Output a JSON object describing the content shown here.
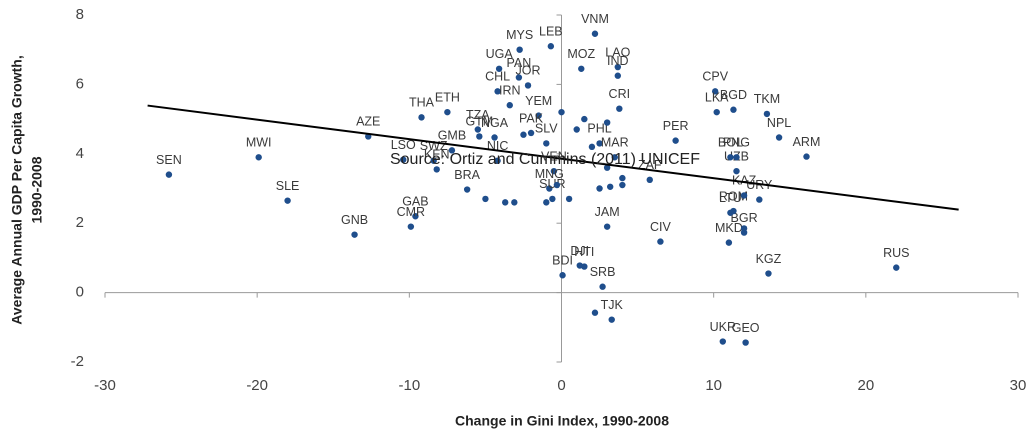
{
  "chart_data": {
    "type": "scatter",
    "x_label": "Change in Gini Index, 1990-2008",
    "y_label": [
      "Average Annual GDP Per Capita Growth,",
      "1990-2008"
    ],
    "annotation": "Source: Ortiz and Cummins (2011) UNICEF",
    "xlim": [
      -30,
      30
    ],
    "ylim": [
      -2,
      8
    ],
    "xticks": [
      -30,
      -20,
      -10,
      0,
      10,
      20,
      30
    ],
    "yticks": [
      -2,
      0,
      2,
      4,
      6,
      8
    ],
    "series": [
      {
        "color": "#1f4e8c",
        "x": [
          -25.8,
          -19.9,
          -18.0,
          -13.6,
          -12.7,
          -9.2,
          -10.4,
          -8.4,
          -9.6,
          -9.9,
          -7.2,
          -7.5,
          -5.5,
          -4.4,
          -5.4,
          -8.2,
          -6.2,
          -4.2,
          -2.75,
          -4.1,
          -0.7,
          -2.8,
          -2.2,
          -4.2,
          -3.4,
          -1.5,
          -2.0,
          -1.0,
          -0.5,
          -0.8,
          -0.6,
          2.2,
          1.3,
          3.7,
          3.7,
          3.8,
          2.5,
          3.5,
          5.8,
          3.0,
          6.5,
          1.2,
          1.5,
          0.07,
          2.7,
          3.3,
          10.6,
          12.1,
          22.0,
          13.6,
          11.0,
          12.0,
          11.3,
          11.1,
          12.0,
          13.0,
          11.5,
          11.5,
          11.1,
          7.5,
          10.1,
          10.2,
          11.3,
          13.5,
          14.3,
          16.1,
          -5.0,
          -3.7,
          -3.1,
          -2.5,
          0.0,
          1.0,
          2.0,
          3.0,
          4.0,
          4.0,
          3.2,
          2.5,
          -0.3,
          -1.0,
          0.5,
          2.2,
          12.0,
          1.5,
          3.0
        ],
        "y": [
          3.4,
          3.9,
          2.65,
          1.67,
          4.5,
          5.05,
          3.83,
          3.8,
          2.2,
          1.9,
          4.1,
          5.2,
          4.7,
          4.47,
          4.5,
          3.55,
          2.97,
          3.8,
          7.0,
          6.45,
          7.1,
          6.2,
          5.97,
          5.8,
          5.4,
          5.1,
          4.6,
          4.3,
          3.5,
          3.0,
          2.7,
          7.46,
          6.45,
          6.5,
          6.25,
          5.3,
          4.3,
          3.9,
          3.25,
          1.9,
          1.47,
          0.78,
          0.75,
          0.5,
          0.17,
          -0.78,
          -1.41,
          -1.44,
          0.72,
          0.55,
          1.44,
          1.73,
          2.35,
          2.3,
          2.8,
          2.68,
          3.5,
          3.9,
          3.9,
          4.38,
          5.8,
          5.2,
          5.27,
          5.15,
          4.47,
          3.92,
          2.7,
          2.6,
          2.6,
          4.55,
          5.2,
          4.7,
          4.2,
          3.6,
          3.3,
          3.1,
          3.05,
          3.0,
          3.1,
          2.6,
          2.7,
          -0.58,
          1.85,
          5.0,
          4.9
        ],
        "labels": [
          "SEN",
          "MWI",
          "SLE",
          "GNB",
          "AZE",
          "THA",
          "LSO",
          "SWZ",
          "GAB",
          "CMR",
          "GMB",
          "ETH",
          "TZA",
          "NGA",
          "GTM",
          "KEN",
          "BRA",
          "NIC",
          "MYS",
          "UGA",
          "LEB",
          "PAN",
          "JOR",
          "CHL",
          "IRN",
          "YEM",
          "PAK",
          "SLV",
          "VEN",
          "MNG",
          "SUR",
          "VNM",
          "MOZ",
          "LAO",
          "IND",
          "CRI",
          "PHL",
          "MAR",
          "ZAF",
          "JAM",
          "CIV",
          "DJI",
          "HTI",
          "BDI",
          "SRB",
          "TJK",
          "UKR",
          "GEO",
          "RUS",
          "KGZ",
          "MKD",
          "BGR",
          "ROM",
          "LTU",
          "KAZ",
          "URY",
          "UZB",
          "PNG",
          "BOL",
          "PER",
          "CPV",
          "LKA",
          "BGD",
          "TKM",
          "NPL",
          "ARM",
          null,
          null,
          null,
          null,
          null,
          null,
          null,
          null,
          null,
          null,
          null,
          null,
          null,
          null,
          null,
          null,
          null,
          null,
          null
        ]
      }
    ],
    "trendline": {
      "color": "#000000",
      "x": [
        -27.2,
        26.1
      ],
      "y": [
        5.39,
        2.39
      ]
    }
  }
}
